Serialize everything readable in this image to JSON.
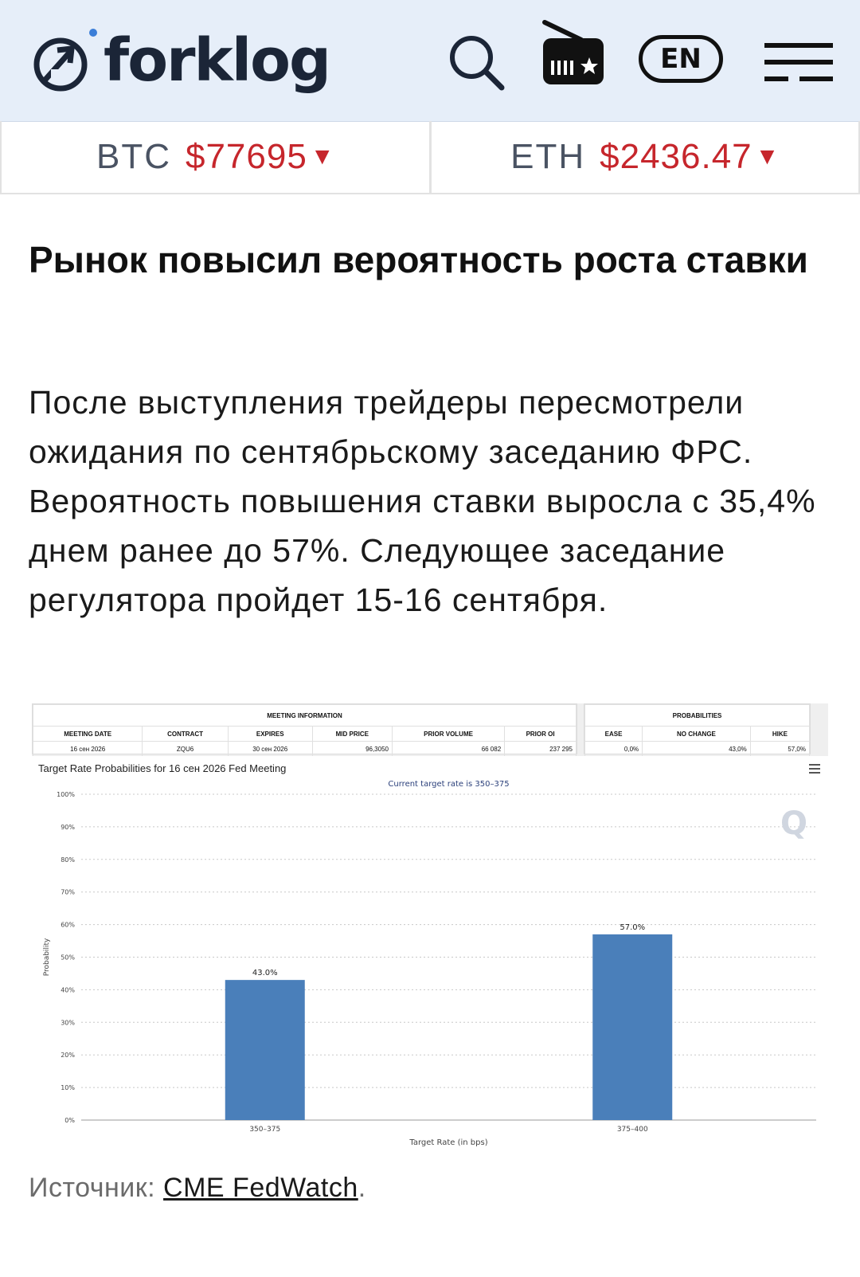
{
  "header": {
    "logo_text": "forklog",
    "icons": [
      "search-icon",
      "radio-icon",
      "menu-icon"
    ],
    "lang_label": "EN",
    "accent_color": "#e6eef9"
  },
  "ticker": [
    {
      "symbol": "BTC",
      "price": "$77695",
      "trend": "▼"
    },
    {
      "symbol": "ETH",
      "price": "$2436.47",
      "trend": "▼"
    }
  ],
  "article": {
    "title": "Рынок повысил вероятность роста ставки",
    "paragraph": "После выступления трейдеры пересмотрели ожидания по сентябрьскому заседанию ФРС. Вероятность повышения ставки выросла с 35,4% днем ранее до 57%. Следующее заседание регулятора пройдет 15-16 сентября."
  },
  "cme": {
    "meeting_header": "MEETING INFORMATION",
    "probabilities_header": "PROBABILITIES",
    "meeting_columns": [
      "MEETING DATE",
      "CONTRACT",
      "EXPIRES",
      "MID PRICE",
      "PRIOR VOLUME",
      "PRIOR OI"
    ],
    "meeting_row": [
      "16 сен 2026",
      "ZQU6",
      "30 сен 2026",
      "96,3050",
      "66 082",
      "237 295"
    ],
    "prob_columns": [
      "EASE",
      "NO CHANGE",
      "HIKE"
    ],
    "prob_row": [
      "0,0%",
      "43,0%",
      "57,0%"
    ],
    "chart_title": "Target Rate Probabilities for 16 сен 2026 Fed Meeting",
    "watermark": "Q"
  },
  "chart_data": {
    "type": "bar",
    "subtitle": "Current target rate is 350–375",
    "categories": [
      "350–375",
      "375–400"
    ],
    "values": [
      43.0,
      57.0
    ],
    "data_labels": [
      "43.0%",
      "57.0%"
    ],
    "xlabel": "Target Rate (in bps)",
    "ylabel": "Probability",
    "ylim": [
      0,
      100
    ],
    "yticks": [
      "0%",
      "10%",
      "20%",
      "30%",
      "40%",
      "50%",
      "60%",
      "70%",
      "80%",
      "90%",
      "100%"
    ],
    "grid": true,
    "bar_color": "#4a7fba"
  },
  "source": {
    "label": "Источник:",
    "link_text": "CME FedWatch",
    "trailing": "."
  }
}
